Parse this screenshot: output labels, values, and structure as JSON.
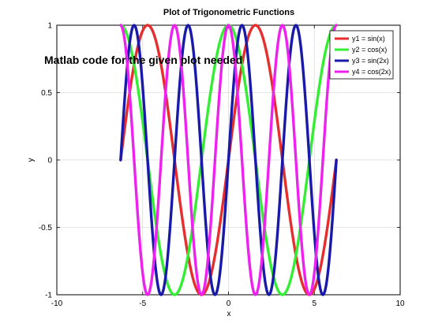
{
  "chart_data": {
    "type": "line",
    "title": "Plot of Trigonometric Functions",
    "xlabel": "x",
    "ylabel": "y",
    "xlim": [
      -10,
      10
    ],
    "ylim": [
      -1,
      1
    ],
    "xticks": [
      -10,
      -5,
      0,
      5,
      10
    ],
    "yticks": [
      -1,
      -0.5,
      0,
      0.5,
      1
    ],
    "xtick_labels": [
      "-10",
      "-5",
      "0",
      "5",
      "10"
    ],
    "ytick_labels": [
      "-1",
      "-0.5",
      "0",
      "0.5",
      "1"
    ],
    "grid": true,
    "legend_position": "top-right",
    "x_range": [
      -6.2832,
      6.2832
    ],
    "series": [
      {
        "name": "y1 = sin(x)",
        "function": "sin(x)",
        "color": "#e62e2e"
      },
      {
        "name": "y2 = cos(x)",
        "function": "cos(x)",
        "color": "#33ee33"
      },
      {
        "name": "y3 = sin(2x)",
        "function": "sin(2x)",
        "color": "#1a1aaa"
      },
      {
        "name": "y4 = cos(2x)",
        "function": "cos(2x)",
        "color": "#ee22ee"
      }
    ],
    "annotation": "Matlab code for the given plot needed"
  }
}
